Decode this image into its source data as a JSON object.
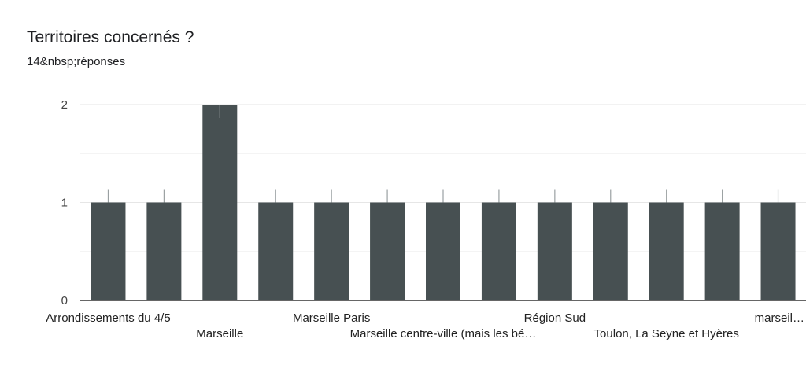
{
  "header": {
    "title": "Territoires concernés ?",
    "subtitle": "14&nbsp;réponses"
  },
  "chart_data": {
    "type": "bar",
    "categories": [
      "Arrondissements du 4/5",
      "",
      "Marseille",
      "",
      "Marseille Paris",
      "",
      "Marseille centre-ville (mais les bé…",
      "",
      "Région Sud",
      "",
      "Toulon, La Seyne et Hyères",
      "",
      "marseil…"
    ],
    "values": [
      1,
      1,
      2,
      1,
      1,
      1,
      1,
      1,
      1,
      1,
      1,
      1,
      1
    ],
    "ylim": [
      0,
      2
    ],
    "yticks": [
      0,
      1,
      2
    ],
    "grid": true,
    "bar_color": "#475052"
  }
}
